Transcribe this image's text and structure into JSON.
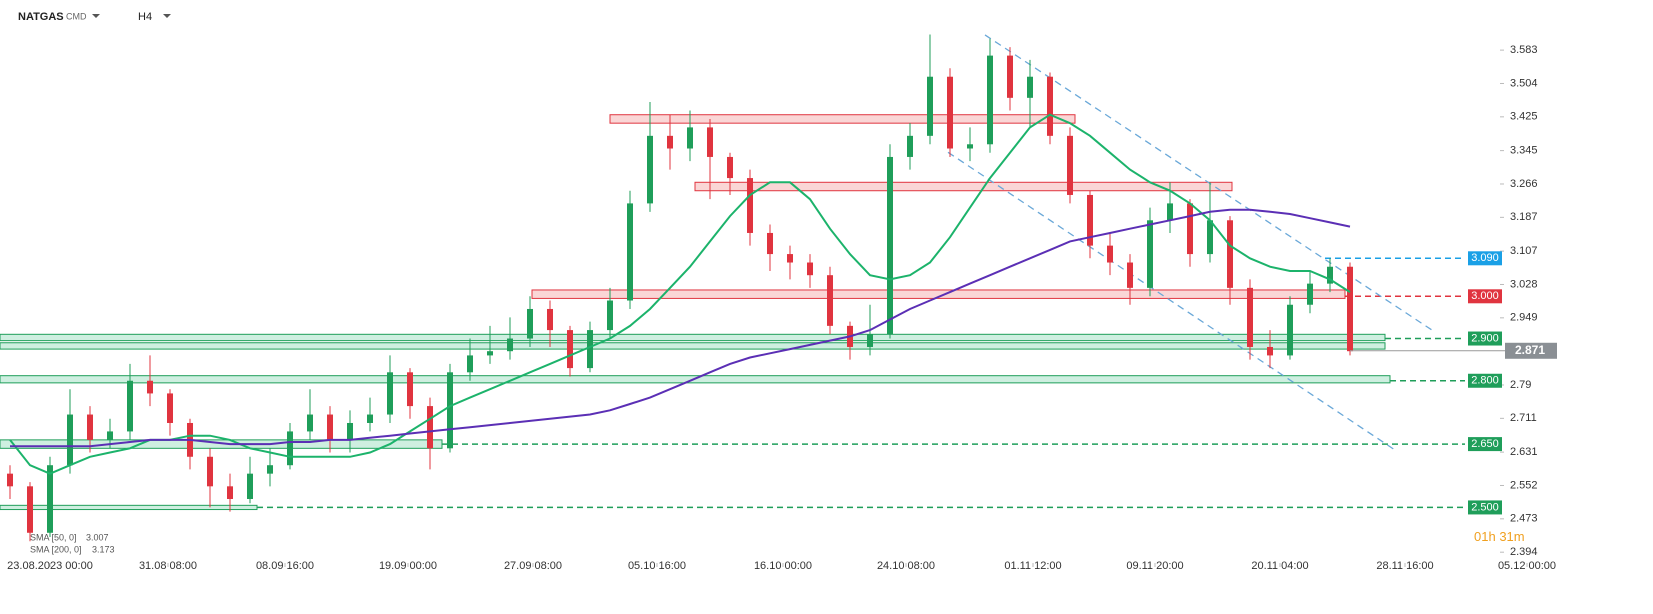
{
  "header": {
    "symbol": "NATGAS",
    "market": "CMD",
    "interval": "H4"
  },
  "countdown": {
    "hours": "01",
    "h": "h",
    "minutes": "31",
    "m": "m"
  },
  "chart_data": {
    "type": "candlestick",
    "xlim": [
      -2.5,
      75.5
    ],
    "ylim": [
      2.34,
      3.678
    ],
    "xticks": [
      {
        "value": 0,
        "label": "23.08.2023 00:00"
      },
      {
        "value": 5.9,
        "label": "31.08 08:00"
      },
      {
        "value": 11.75,
        "label": "08.09 16:00"
      },
      {
        "value": 17.9,
        "label": "19.09 00:00"
      },
      {
        "value": 24.15,
        "label": "27.09 08:00"
      },
      {
        "value": 30.35,
        "label": "05.10 16:00"
      },
      {
        "value": 36.65,
        "label": "16.10 00:00"
      },
      {
        "value": 42.8,
        "label": "24.10 08:00"
      },
      {
        "value": 49.15,
        "label": "01.11 12:00"
      },
      {
        "value": 55.25,
        "label": "09.11 20:00"
      },
      {
        "value": 61.5,
        "label": "20.11 04:00"
      },
      {
        "value": 67.75,
        "label": "28.11 16:00"
      },
      {
        "value": 73.85,
        "label": "05.12 00:00"
      }
    ],
    "yticks": [
      3.583,
      3.504,
      3.425,
      3.345,
      3.266,
      3.187,
      3.107,
      3.028,
      2.949,
      2.79,
      2.711,
      2.631,
      2.552,
      2.473,
      2.394
    ],
    "up_color": "#1f9e5a",
    "down_color": "#e0343f",
    "x": [
      -2,
      -1,
      0,
      1,
      2,
      3,
      4,
      5,
      6,
      7,
      8,
      9,
      10,
      11,
      12,
      13,
      14,
      15,
      16,
      17,
      18,
      19,
      20,
      21,
      22,
      23,
      24,
      25,
      26,
      27,
      28,
      29,
      30,
      31,
      32,
      33,
      34,
      35,
      36,
      37,
      38,
      39,
      40,
      41,
      42,
      43,
      44,
      45,
      46,
      47,
      48,
      49,
      50,
      51,
      52,
      53,
      54,
      55,
      56,
      57,
      58,
      59,
      60,
      61,
      62,
      63,
      64,
      65
    ],
    "open": [
      2.58,
      2.55,
      2.44,
      2.6,
      2.72,
      2.66,
      2.68,
      2.8,
      2.77,
      2.7,
      2.62,
      2.55,
      2.52,
      2.58,
      2.6,
      2.68,
      2.72,
      2.66,
      2.7,
      2.72,
      2.82,
      2.74,
      2.64,
      2.82,
      2.86,
      2.87,
      2.9,
      2.97,
      2.92,
      2.83,
      2.92,
      2.99,
      3.22,
      3.38,
      3.35,
      3.4,
      3.33,
      3.28,
      3.15,
      3.1,
      3.08,
      3.05,
      2.93,
      2.88,
      2.91,
      3.33,
      3.38,
      3.52,
      3.35,
      3.36,
      3.57,
      3.47,
      3.52,
      3.38,
      3.24,
      3.12,
      3.08,
      3.02,
      3.18,
      3.22,
      3.1,
      3.18,
      3.02,
      2.88,
      2.86,
      2.98,
      3.03,
      3.07
    ],
    "high": [
      2.6,
      2.56,
      2.62,
      2.78,
      2.74,
      2.71,
      2.84,
      2.86,
      2.78,
      2.71,
      2.64,
      2.58,
      2.62,
      2.64,
      2.7,
      2.78,
      2.74,
      2.73,
      2.76,
      2.86,
      2.83,
      2.76,
      2.84,
      2.9,
      2.93,
      2.95,
      3.0,
      2.99,
      2.93,
      2.94,
      3.02,
      3.25,
      3.46,
      3.43,
      3.44,
      3.42,
      3.34,
      3.3,
      3.17,
      3.12,
      3.1,
      3.07,
      2.94,
      2.98,
      3.36,
      3.41,
      3.62,
      3.54,
      3.4,
      3.61,
      3.59,
      3.56,
      3.53,
      3.4,
      3.25,
      3.15,
      3.1,
      3.21,
      3.27,
      3.23,
      3.27,
      3.19,
      3.04,
      2.92,
      3.0,
      3.06,
      3.09,
      3.08
    ],
    "low": [
      2.52,
      2.42,
      2.43,
      2.58,
      2.63,
      2.64,
      2.66,
      2.74,
      2.67,
      2.59,
      2.5,
      2.49,
      2.51,
      2.55,
      2.59,
      2.66,
      2.63,
      2.63,
      2.68,
      2.7,
      2.71,
      2.59,
      2.63,
      2.8,
      2.84,
      2.85,
      2.88,
      2.88,
      2.81,
      2.82,
      2.9,
      2.97,
      3.2,
      3.3,
      3.32,
      3.23,
      3.24,
      3.12,
      3.06,
      3.04,
      3.02,
      2.91,
      2.85,
      2.86,
      2.9,
      3.3,
      3.36,
      3.33,
      3.32,
      3.34,
      3.44,
      3.4,
      3.36,
      3.22,
      3.09,
      3.05,
      2.98,
      3.0,
      3.15,
      3.07,
      3.08,
      2.98,
      2.85,
      2.83,
      2.85,
      2.96,
      3.01,
      2.86
    ],
    "close": [
      2.55,
      2.44,
      2.6,
      2.72,
      2.66,
      2.68,
      2.8,
      2.77,
      2.7,
      2.62,
      2.55,
      2.52,
      2.58,
      2.6,
      2.68,
      2.72,
      2.66,
      2.7,
      2.72,
      2.82,
      2.74,
      2.64,
      2.82,
      2.86,
      2.87,
      2.9,
      2.97,
      2.92,
      2.83,
      2.92,
      2.99,
      3.22,
      3.38,
      3.35,
      3.4,
      3.33,
      3.28,
      3.15,
      3.1,
      3.08,
      3.05,
      2.93,
      2.88,
      2.91,
      3.33,
      3.38,
      3.52,
      3.35,
      3.36,
      3.57,
      3.47,
      3.52,
      3.38,
      3.24,
      3.12,
      3.08,
      3.02,
      3.18,
      3.22,
      3.1,
      3.18,
      3.02,
      2.88,
      2.86,
      2.98,
      3.03,
      3.07,
      2.87
    ],
    "series": [
      {
        "name": "SMA [50, 0]",
        "last": 3.007,
        "color": "#1cb36b",
        "values": [
          2.66,
          2.6,
          2.58,
          2.6,
          2.62,
          2.63,
          2.64,
          2.66,
          2.66,
          2.67,
          2.67,
          2.66,
          2.64,
          2.63,
          2.62,
          2.62,
          2.62,
          2.62,
          2.63,
          2.65,
          2.68,
          2.71,
          2.74,
          2.76,
          2.78,
          2.8,
          2.82,
          2.84,
          2.86,
          2.88,
          2.9,
          2.93,
          2.97,
          3.02,
          3.07,
          3.13,
          3.19,
          3.24,
          3.27,
          3.27,
          3.23,
          3.16,
          3.1,
          3.05,
          3.04,
          3.05,
          3.08,
          3.14,
          3.21,
          3.28,
          3.34,
          3.4,
          3.43,
          3.41,
          3.38,
          3.34,
          3.3,
          3.27,
          3.25,
          3.22,
          3.18,
          3.12,
          3.09,
          3.07,
          3.06,
          3.06,
          3.04,
          3.01
        ]
      },
      {
        "name": "SMA [200, 0]",
        "last": 3.173,
        "color": "#5b2fb5",
        "values": [
          2.645,
          2.645,
          2.645,
          2.645,
          2.645,
          2.65,
          2.655,
          2.66,
          2.66,
          2.66,
          2.655,
          2.65,
          2.65,
          2.65,
          2.655,
          2.655,
          2.66,
          2.66,
          2.665,
          2.67,
          2.675,
          2.68,
          2.685,
          2.69,
          2.695,
          2.7,
          2.705,
          2.71,
          2.715,
          2.72,
          2.73,
          2.745,
          2.76,
          2.78,
          2.8,
          2.82,
          2.84,
          2.855,
          2.865,
          2.875,
          2.885,
          2.895,
          2.905,
          2.92,
          2.945,
          2.97,
          2.99,
          3.01,
          3.03,
          3.05,
          3.07,
          3.09,
          3.11,
          3.13,
          3.14,
          3.15,
          3.16,
          3.17,
          3.18,
          3.19,
          3.2,
          3.205,
          3.205,
          3.2,
          3.195,
          3.185,
          3.175,
          3.165
        ]
      }
    ],
    "zones": [
      {
        "from": 28,
        "to": 51.25,
        "low": 3.41,
        "high": 3.43,
        "color": "red"
      },
      {
        "from": 32.25,
        "to": 59.1,
        "low": 3.25,
        "high": 3.27,
        "color": "red"
      },
      {
        "from": 24.1,
        "to": 64.75,
        "low": 2.995,
        "high": 3.015,
        "color": "red"
      },
      {
        "from": -2.5,
        "to": 66.75,
        "low": 2.895,
        "high": 2.91,
        "color": "green"
      },
      {
        "from": -2.5,
        "to": 66.75,
        "low": 2.875,
        "high": 2.89,
        "color": "green"
      },
      {
        "from": -2.5,
        "to": 67,
        "low": 2.795,
        "high": 2.812,
        "color": "green"
      },
      {
        "from": -2.5,
        "to": 19.6,
        "low": 2.64,
        "high": 2.66,
        "color": "green"
      },
      {
        "from": -2.5,
        "to": 10.35,
        "low": 2.495,
        "high": 2.505,
        "color": "green"
      }
    ],
    "channels": [
      {
        "x": [
          46.75,
          69.1
        ],
        "y": [
          3.619,
          2.92
        ]
      },
      {
        "x": [
          44.9,
          67.25
        ],
        "y": [
          3.341,
          2.636
        ]
      }
    ],
    "levels": [
      {
        "value": 3.09,
        "label": "3.090",
        "color": "#1aa0e6",
        "from": 63.75
      },
      {
        "value": 3.0,
        "label": "3.000",
        "color": "#e0343f",
        "from": 64.75
      },
      {
        "value": 2.9,
        "label": "2.900",
        "color": "#1f9e5a",
        "from": 66.75
      },
      {
        "value": 2.8,
        "label": "2.800",
        "color": "#1f9e5a",
        "from": 67
      },
      {
        "value": 2.65,
        "label": "2.650",
        "color": "#1f9e5a",
        "from": 19.6
      },
      {
        "value": 2.5,
        "label": "2.500",
        "color": "#1f9e5a",
        "from": 10.35
      }
    ],
    "current": {
      "value": 2.871,
      "label": "2.871",
      "from": 65
    }
  }
}
